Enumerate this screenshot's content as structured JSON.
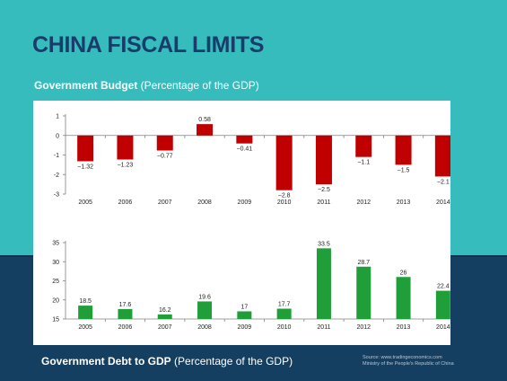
{
  "page": {
    "title": "CHINA FISCAL LIMITS",
    "budget_caption_bold": "Government Budget",
    "budget_caption_rest": " (Percentage of the GDP)",
    "debt_caption_bold": "Government Debt to GDP",
    "debt_caption_rest": " (Percentage of the GDP)",
    "source_line1": "Source: www.tradingeconomics.com",
    "source_line2": "Ministry of the People's Republic of China"
  },
  "colors": {
    "background": "#36bcbd",
    "bottom_band": "#153f60",
    "title": "#1a3c6a",
    "budget_bar": "#c00000",
    "debt_bar": "#1f9e3a"
  },
  "chart_data": [
    {
      "type": "bar",
      "categories": [
        "2005",
        "2006",
        "2007",
        "2008",
        "2009",
        "2010",
        "2011",
        "2012",
        "2013",
        "2014"
      ],
      "values": [
        -1.32,
        -1.23,
        -0.77,
        0.58,
        -0.41,
        -2.8,
        -2.5,
        -1.1,
        -1.5,
        -2.1
      ],
      "data_labels": [
        "−1.32",
        "−1.23",
        "−0.77",
        "0.58",
        "−0.41",
        "−2.8",
        "−2.5",
        "−1.1",
        "−1.5",
        "−2.1"
      ],
      "ylim": [
        -3,
        1
      ],
      "yticks": [
        1,
        0,
        -1,
        -2,
        -3
      ],
      "color": "#c00000",
      "grid": false
    },
    {
      "type": "bar",
      "categories": [
        "2005",
        "2006",
        "2007",
        "2008",
        "2009",
        "2010",
        "2011",
        "2012",
        "2013",
        "2014"
      ],
      "values": [
        18.5,
        17.6,
        16.2,
        19.6,
        17,
        17.7,
        33.5,
        28.7,
        26,
        22.4
      ],
      "data_labels": [
        "18.5",
        "17.6",
        "16.2",
        "19.6",
        "17",
        "17.7",
        "33.5",
        "28.7",
        "26",
        "22.4"
      ],
      "ylim": [
        15,
        35
      ],
      "yticks": [
        35,
        30,
        25,
        20,
        15
      ],
      "color": "#1f9e3a",
      "grid": false
    }
  ]
}
